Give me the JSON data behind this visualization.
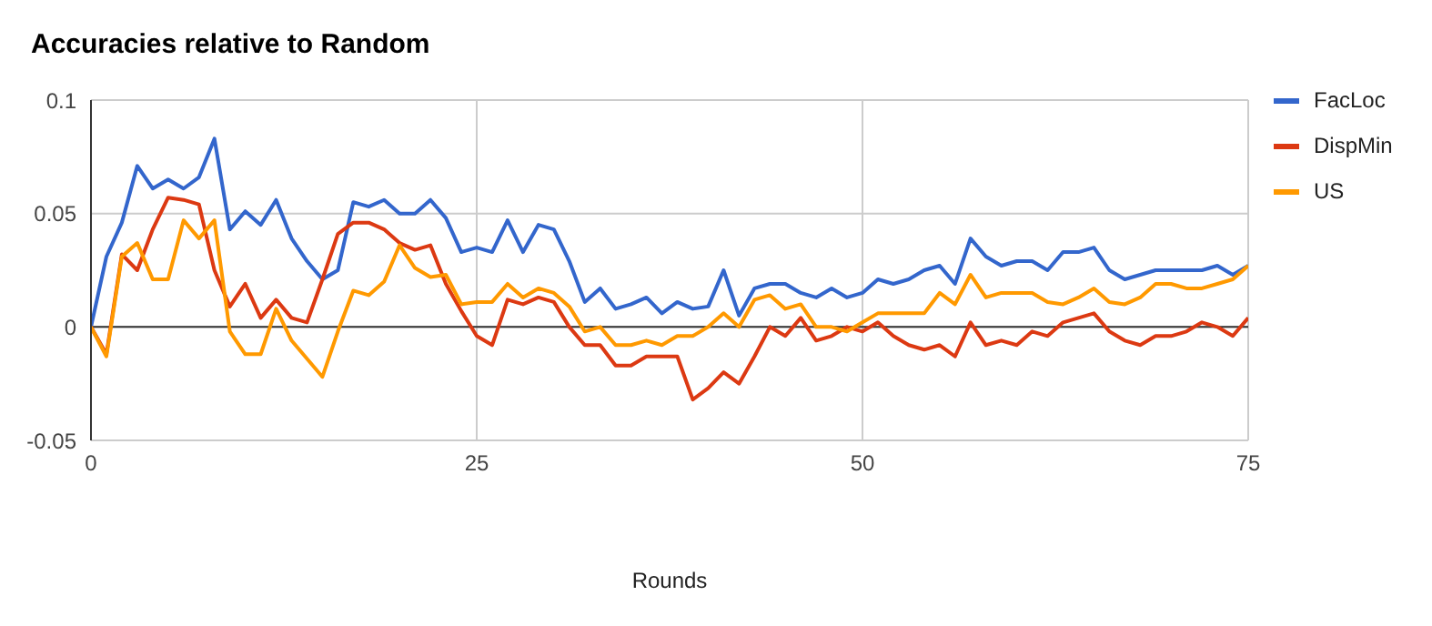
{
  "chart_data": {
    "type": "line",
    "title": "Accuracies relative to Random",
    "xlabel": "Rounds",
    "x": [
      0,
      1,
      2,
      3,
      4,
      5,
      6,
      7,
      8,
      9,
      10,
      11,
      12,
      13,
      14,
      15,
      16,
      17,
      18,
      19,
      20,
      21,
      22,
      23,
      24,
      25,
      26,
      27,
      28,
      29,
      30,
      31,
      32,
      33,
      34,
      35,
      36,
      37,
      38,
      39,
      40,
      41,
      42,
      43,
      44,
      45,
      46,
      47,
      48,
      49,
      50,
      51,
      52,
      53,
      54,
      55,
      56,
      57,
      58,
      59,
      60,
      61,
      62,
      63,
      64,
      65,
      66,
      67,
      68,
      69,
      70,
      71,
      72,
      73,
      74,
      75
    ],
    "series": [
      {
        "name": "FacLoc",
        "color": "#3366cc",
        "values": [
          0,
          0.031,
          0.046,
          0.071,
          0.061,
          0.065,
          0.061,
          0.066,
          0.083,
          0.043,
          0.051,
          0.045,
          0.056,
          0.039,
          0.029,
          0.021,
          0.025,
          0.055,
          0.053,
          0.056,
          0.05,
          0.05,
          0.056,
          0.048,
          0.033,
          0.035,
          0.033,
          0.047,
          0.033,
          0.045,
          0.043,
          0.029,
          0.011,
          0.017,
          0.008,
          0.01,
          0.013,
          0.006,
          0.011,
          0.008,
          0.009,
          0.025,
          0.005,
          0.017,
          0.019,
          0.019,
          0.015,
          0.013,
          0.017,
          0.013,
          0.015,
          0.021,
          0.019,
          0.021,
          0.025,
          0.027,
          0.019,
          0.039,
          0.031,
          0.027,
          0.029,
          0.029,
          0.025,
          0.033,
          0.033,
          0.035,
          0.025,
          0.021,
          0.023,
          0.025,
          0.025,
          0.025,
          0.025,
          0.027,
          0.023,
          0.027
        ]
      },
      {
        "name": "DispMin",
        "color": "#dc3912",
        "values": [
          0,
          -0.012,
          0.032,
          0.025,
          0.043,
          0.057,
          0.056,
          0.054,
          0.025,
          0.009,
          0.019,
          0.004,
          0.012,
          0.004,
          0.002,
          0.021,
          0.041,
          0.046,
          0.046,
          0.043,
          0.037,
          0.034,
          0.036,
          0.019,
          0.007,
          -0.004,
          -0.008,
          0.012,
          0.01,
          0.013,
          0.011,
          0,
          -0.008,
          -0.008,
          -0.017,
          -0.017,
          -0.013,
          -0.013,
          -0.013,
          -0.032,
          -0.027,
          -0.02,
          -0.025,
          -0.013,
          0,
          -0.004,
          0.004,
          -0.006,
          -0.004,
          0,
          -0.002,
          0.002,
          -0.004,
          -0.008,
          -0.01,
          -0.008,
          -0.013,
          0.002,
          -0.008,
          -0.006,
          -0.008,
          -0.002,
          -0.004,
          0.002,
          0.004,
          0.006,
          -0.002,
          -0.006,
          -0.008,
          -0.004,
          -0.004,
          -0.002,
          0.002,
          0,
          -0.004,
          0.004
        ]
      },
      {
        "name": "US",
        "color": "#ff9900",
        "values": [
          0,
          -0.013,
          0.031,
          0.037,
          0.021,
          0.021,
          0.047,
          0.039,
          0.047,
          -0.002,
          -0.012,
          -0.012,
          0.008,
          -0.006,
          -0.014,
          -0.022,
          -0.002,
          0.016,
          0.014,
          0.02,
          0.036,
          0.026,
          0.022,
          0.023,
          0.01,
          0.011,
          0.011,
          0.019,
          0.013,
          0.017,
          0.015,
          0.009,
          -0.002,
          0,
          -0.008,
          -0.008,
          -0.006,
          -0.008,
          -0.004,
          -0.004,
          0,
          0.006,
          0,
          0.012,
          0.014,
          0.008,
          0.01,
          0,
          0,
          -0.002,
          0.002,
          0.006,
          0.006,
          0.006,
          0.006,
          0.015,
          0.01,
          0.023,
          0.013,
          0.015,
          0.015,
          0.015,
          0.011,
          0.01,
          0.013,
          0.017,
          0.011,
          0.01,
          0.013,
          0.019,
          0.019,
          0.017,
          0.017,
          0.019,
          0.021,
          0.027
        ]
      }
    ],
    "xlim": [
      0,
      75
    ],
    "xticks": [
      0,
      25,
      50,
      75
    ],
    "ylim": [
      -0.05,
      0.1
    ],
    "yticks": [
      -0.05,
      0,
      0.05,
      0.1
    ],
    "grid": true,
    "legend": "top right",
    "marker": "none",
    "line_style": "solid"
  }
}
